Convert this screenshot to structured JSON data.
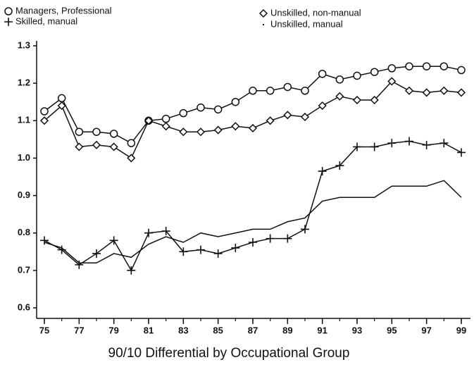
{
  "chart_data": {
    "type": "line",
    "title": "90/10 Differential by Occupational Group",
    "x": [
      75,
      76,
      77,
      78,
      79,
      80,
      81,
      82,
      83,
      84,
      85,
      86,
      87,
      88,
      89,
      90,
      91,
      92,
      93,
      94,
      95,
      96,
      97,
      98,
      99
    ],
    "xlim": [
      75,
      99
    ],
    "xticks": [
      75,
      77,
      79,
      81,
      83,
      85,
      87,
      89,
      91,
      93,
      95,
      97,
      99
    ],
    "ylim": [
      0.6,
      1.3
    ],
    "yticks": [
      0.6,
      0.7,
      0.8,
      0.9,
      {
        "value": 1,
        "label": "1.0"
      },
      1.1,
      1.2,
      1.3
    ],
    "grid": false,
    "series": [
      {
        "name": "Managers, Professional",
        "color": "#111111",
        "marker": "circle",
        "values": [
          1.125,
          1.16,
          1.07,
          1.07,
          1.065,
          1.04,
          1.1,
          1.105,
          1.12,
          1.135,
          1.13,
          1.15,
          1.18,
          1.18,
          1.19,
          1.18,
          1.225,
          1.21,
          1.22,
          1.23,
          1.24,
          1.245,
          1.245,
          1.245,
          1.235
        ]
      },
      {
        "name": "Skilled, manual",
        "color": "#111111",
        "marker": "plus",
        "values": [
          0.78,
          0.755,
          0.715,
          0.745,
          0.78,
          0.7,
          0.8,
          0.805,
          0.75,
          0.755,
          0.745,
          0.76,
          0.775,
          0.785,
          0.785,
          0.81,
          0.965,
          0.98,
          1.03,
          1.03,
          1.04,
          1.045,
          1.035,
          1.04,
          1.015
        ]
      },
      {
        "name": "Unskilled, non-manual",
        "color": "#111111",
        "marker": "diamond",
        "values": [
          1.1,
          1.14,
          1.03,
          1.035,
          1.03,
          1.0,
          1.1,
          1.085,
          1.07,
          1.07,
          1.075,
          1.085,
          1.08,
          1.1,
          1.115,
          1.11,
          1.14,
          1.165,
          1.155,
          1.155,
          1.205,
          1.18,
          1.175,
          1.18,
          1.175
        ]
      },
      {
        "name": "Unskilled, manual",
        "color": "#111111",
        "marker": "dot",
        "values": [
          0.775,
          0.76,
          0.72,
          0.72,
          0.745,
          0.735,
          0.77,
          0.79,
          0.775,
          0.8,
          0.79,
          0.8,
          0.81,
          0.81,
          0.83,
          0.84,
          0.885,
          0.895,
          0.895,
          0.895,
          0.925,
          0.925,
          0.925,
          0.94,
          0.895
        ]
      }
    ]
  }
}
